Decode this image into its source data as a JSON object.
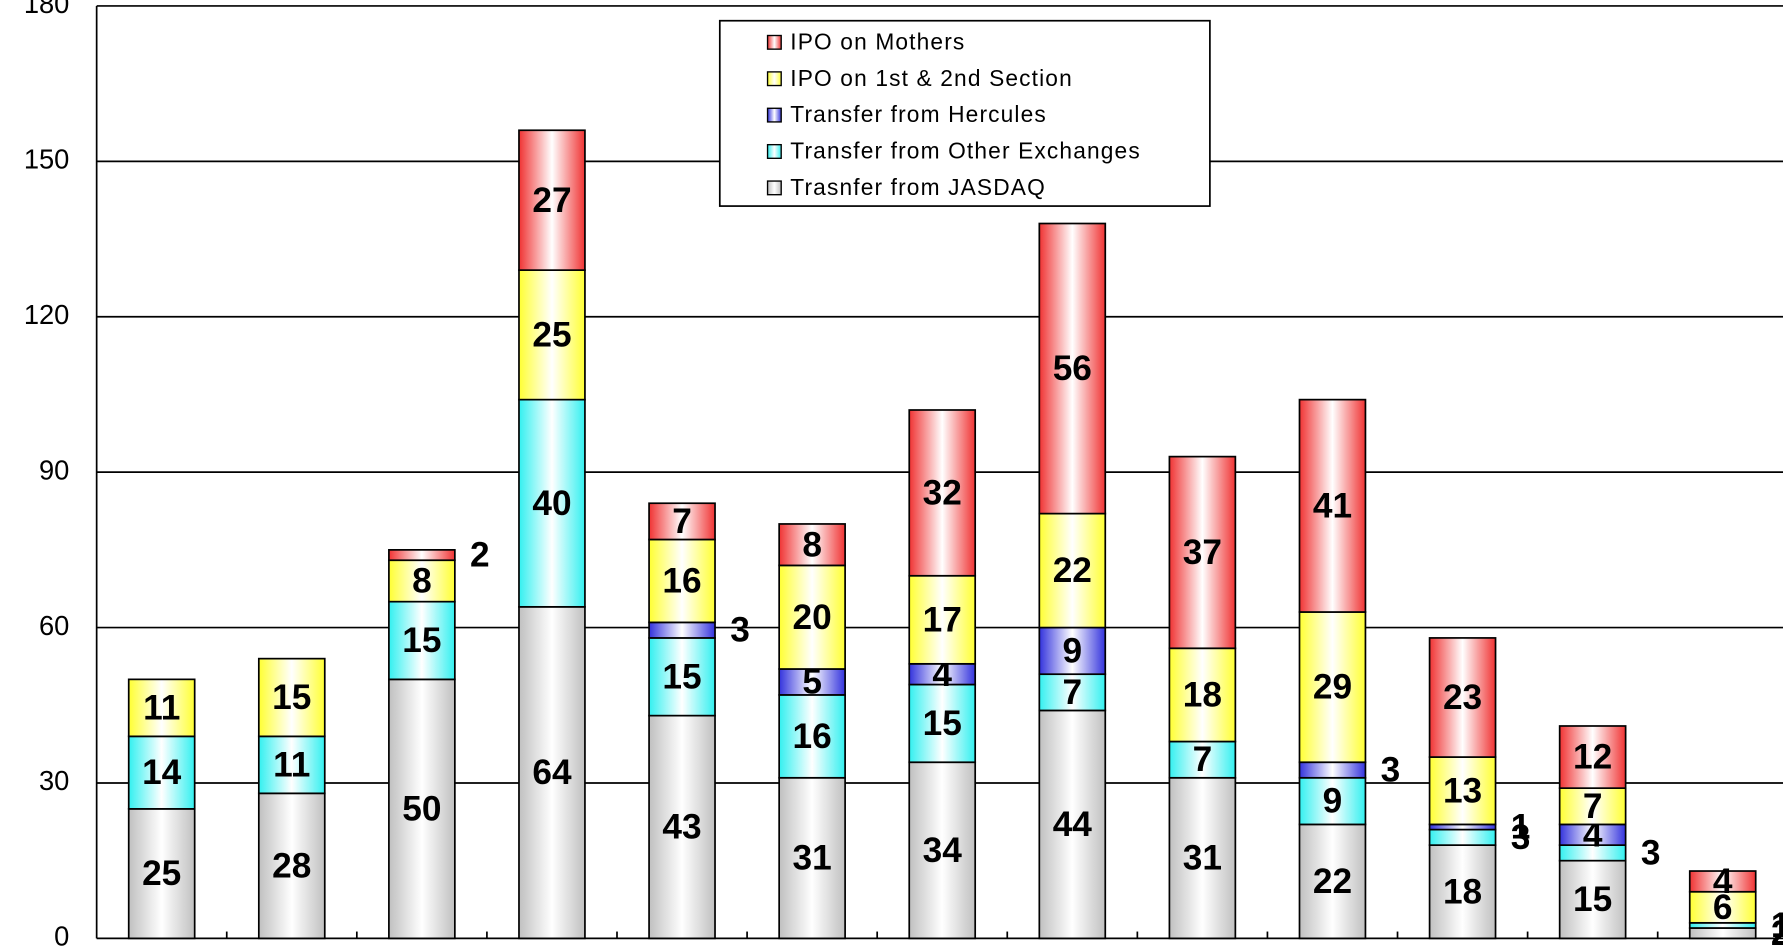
{
  "chart_data": {
    "type": "bar",
    "stacked": true,
    "categories": [
      null,
      null,
      null,
      null,
      null,
      null,
      null,
      null,
      null,
      null,
      null,
      null,
      null
    ],
    "series": [
      {
        "name": "Trasnfer from JASDAQ",
        "color": "#c0c0c0",
        "values": [
          25,
          28,
          50,
          64,
          43,
          31,
          34,
          44,
          31,
          22,
          18,
          15,
          2
        ]
      },
      {
        "name": "Transfer from Other Exchanges",
        "color": "#33f0f0",
        "values": [
          14,
          11,
          15,
          40,
          15,
          16,
          15,
          7,
          7,
          9,
          3,
          3,
          1
        ]
      },
      {
        "name": "Transfer from Hercules",
        "color": "#3333dd",
        "values": [
          null,
          null,
          null,
          null,
          3,
          5,
          4,
          9,
          null,
          3,
          1,
          4,
          null
        ]
      },
      {
        "name": "IPO on 1st & 2nd Section",
        "color": "#ffff33",
        "values": [
          11,
          15,
          8,
          25,
          16,
          20,
          17,
          22,
          18,
          29,
          13,
          7,
          6
        ]
      },
      {
        "name": "IPO on Mothers",
        "color": "#f03333",
        "values": [
          null,
          null,
          2,
          27,
          7,
          8,
          32,
          56,
          37,
          41,
          23,
          12,
          4
        ]
      }
    ],
    "ylim": [
      0,
      180
    ],
    "yticks": [
      0,
      30,
      60,
      90,
      120,
      150,
      180
    ],
    "grid": true
  }
}
